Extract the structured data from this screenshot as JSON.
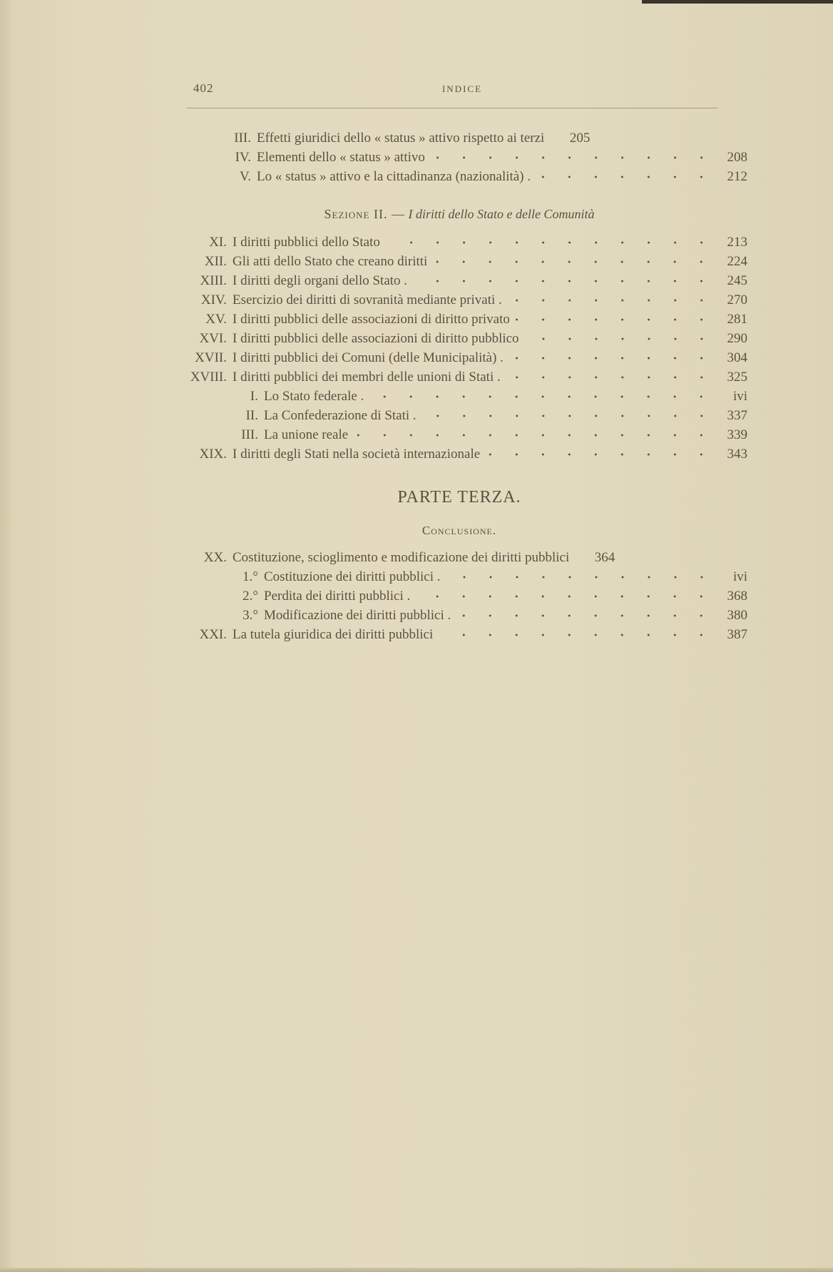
{
  "header": {
    "page_number": "402",
    "running_title": "INDICE"
  },
  "section_a_entries": [
    {
      "num": "III.",
      "title": "Effetti giuridici dello « status » attivo rispetto ai terzi",
      "page": "205"
    },
    {
      "num": "IV.",
      "title": "Elementi dello « status » attivo",
      "page": "208"
    },
    {
      "num": "V.",
      "title": "Lo « status » attivo e la cittadinanza (nazionalità) .",
      "page": "212"
    }
  ],
  "sezione": {
    "label": "Sezione II. —",
    "title": "I diritti dello Stato e delle Comunità"
  },
  "section_b_entries": [
    {
      "num": "XI.",
      "title": "I diritti pubblici dello Stato",
      "page": "213"
    },
    {
      "num": "XII.",
      "title": "Gli atti dello Stato che creano diritti",
      "page": "224"
    },
    {
      "num": "XIII.",
      "title": "I diritti degli organi dello Stato .",
      "page": "245"
    },
    {
      "num": "XIV.",
      "title": "Esercizio dei diritti di sovranità mediante privati .",
      "page": "270"
    },
    {
      "num": "XV.",
      "title": "I diritti pubblici delle associazioni di diritto privato",
      "page": "281"
    },
    {
      "num": "XVI.",
      "title": "I diritti pubblici delle associazioni di diritto pubblico",
      "page": "290"
    },
    {
      "num": "XVII.",
      "title": "I diritti pubblici dei Comuni (delle Municipalità) .",
      "page": "304"
    },
    {
      "num": "XVIII.",
      "title": "I diritti pubblici dei membri delle unioni di Stati .",
      "page": "325"
    },
    {
      "num": "I.",
      "title": "Lo Stato federale .",
      "page": "ivi",
      "sub": true
    },
    {
      "num": "II.",
      "title": "La Confederazione di Stati .",
      "page": "337",
      "sub": true
    },
    {
      "num": "III.",
      "title": "La unione reale",
      "page": "339",
      "sub": true
    },
    {
      "num": "XIX.",
      "title": "I diritti degli Stati nella società internazionale",
      "page": "343"
    }
  ],
  "parte": {
    "title": "PARTE TERZA.",
    "subtitle": "Conclusione."
  },
  "section_c_entries": [
    {
      "num": "XX.",
      "title": "Costituzione, scioglimento e modificazione dei diritti pubblici",
      "page": "364"
    },
    {
      "num": "1.°",
      "title": "Costituzione dei diritti pubblici .",
      "page": "ivi",
      "sub": true
    },
    {
      "num": "2.°",
      "title": "Perdita dei diritti pubblici .",
      "page": "368",
      "sub": true
    },
    {
      "num": "3.°",
      "title": "Modificazione dei diritti pubblici .",
      "page": "380",
      "sub": true
    },
    {
      "num": "XXI.",
      "title": "La tutela giuridica dei diritti pubblici",
      "page": "387"
    }
  ]
}
